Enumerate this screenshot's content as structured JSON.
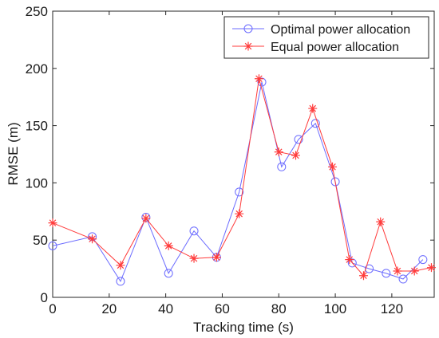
{
  "chart_data": {
    "type": "line",
    "xlabel": "Tracking time (s)",
    "ylabel": "RMSE (m)",
    "xlim": [
      0,
      135
    ],
    "ylim": [
      0,
      250
    ],
    "x_ticks": [
      0,
      20,
      40,
      60,
      80,
      100,
      120
    ],
    "y_ticks": [
      0,
      50,
      100,
      150,
      200,
      250
    ],
    "grid": false,
    "legend_position": "top-right",
    "series": [
      {
        "name": "Optimal power allocation",
        "color": "#6b6bff",
        "marker": "circle",
        "x": [
          0,
          14,
          24,
          33,
          41,
          50,
          58,
          66,
          74,
          81,
          87,
          93,
          100,
          106,
          112,
          118,
          124,
          131
        ],
        "y": [
          45,
          53,
          14,
          70,
          21,
          58,
          35,
          92,
          188,
          114,
          138,
          152,
          101,
          30,
          25,
          21,
          16,
          33
        ]
      },
      {
        "name": "Equal power allocation",
        "color": "#ff3b3b",
        "marker": "star",
        "x": [
          0,
          14,
          24,
          33,
          41,
          50,
          58,
          66,
          73,
          80,
          86,
          92,
          99,
          105,
          110,
          116,
          122,
          128,
          134
        ],
        "y": [
          65,
          51,
          28,
          69,
          45,
          34,
          35,
          73,
          191,
          127,
          124,
          165,
          114,
          33,
          19,
          66,
          23,
          23,
          26
        ]
      }
    ]
  }
}
